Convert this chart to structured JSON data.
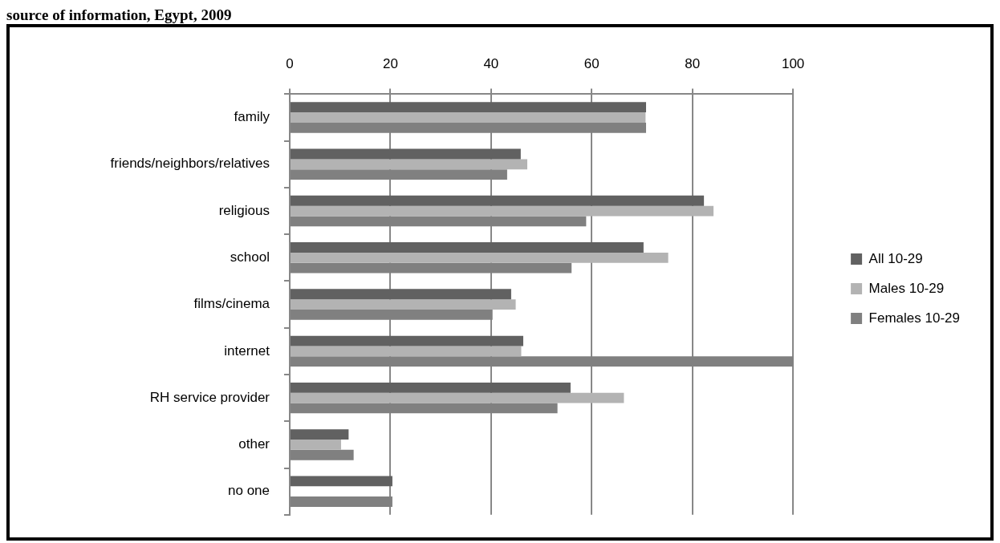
{
  "chart_data": {
    "type": "bar",
    "orientation": "horizontal",
    "title": "source of information, Egypt, 2009",
    "categories": [
      "family",
      "friends/neighbors/relatives",
      "religious",
      "school",
      "films/cinema",
      "internet",
      "RH service provider",
      "other",
      "no one"
    ],
    "series": [
      {
        "name": "All 10-29",
        "color": "#616161",
        "values": [
          70.8,
          45.9,
          82.3,
          70.3,
          44.0,
          46.4,
          55.8,
          11.7,
          20.4
        ]
      },
      {
        "name": "Males 10-29",
        "color": "#b3b3b3",
        "values": [
          70.7,
          47.2,
          84.2,
          75.2,
          44.9,
          46.0,
          66.4,
          10.2,
          null
        ]
      },
      {
        "name": "Females 10-29",
        "color": "#808080",
        "values": [
          70.8,
          43.2,
          58.9,
          56.0,
          40.3,
          100,
          53.2,
          12.7,
          20.4
        ]
      }
    ],
    "xlim": [
      0,
      100
    ],
    "xticks": [
      0,
      20,
      40,
      60,
      80,
      100
    ],
    "grid": "x",
    "legend": "right"
  }
}
